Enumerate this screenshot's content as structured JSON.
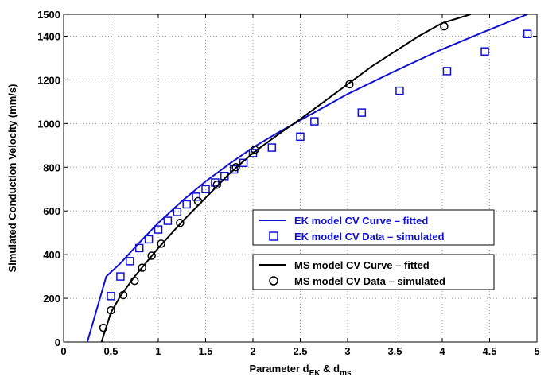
{
  "chart_data": {
    "type": "line",
    "title": "",
    "xlabel": {
      "main": "Parameter d",
      "sub1": "EK",
      "mid": " & d",
      "sub2": "ms"
    },
    "ylabel": "Simulated Conduction Velocity (mm/s)",
    "xlim": [
      0,
      5
    ],
    "ylim": [
      0,
      1500
    ],
    "xticks": [
      0,
      0.5,
      1,
      1.5,
      2,
      2.5,
      3,
      3.5,
      4,
      4.5,
      5
    ],
    "xtick_labels": [
      "0",
      "0.5",
      "1",
      "1.5",
      "2",
      "2.5",
      "3",
      "3.5",
      "4",
      "4.5",
      "5"
    ],
    "yticks": [
      0,
      200,
      400,
      600,
      800,
      1000,
      1200,
      1400,
      1500
    ],
    "ytick_labels": [
      "0",
      "200",
      "400",
      "600",
      "800",
      "1000",
      "1200",
      "1400",
      "1500"
    ],
    "grid": true,
    "legend_placement": "lower-right",
    "colors": {
      "ek": "#1010d0",
      "ms": "#000000"
    },
    "series": [
      {
        "name": "EK model CV Curve – fitted",
        "kind": "line",
        "color": "#1010d0",
        "x": [
          0.25,
          0.35,
          0.45,
          0.6,
          0.8,
          1.0,
          1.25,
          1.5,
          1.75,
          2.0,
          2.25,
          2.5,
          2.75,
          3.0,
          3.5,
          4.0,
          4.5,
          4.9
        ],
        "y": [
          0,
          150,
          300,
          360,
          455,
          545,
          645,
          735,
          815,
          890,
          955,
          1015,
          1075,
          1135,
          1240,
          1340,
          1430,
          1500
        ]
      },
      {
        "name": "EK model CV Data – simulated",
        "kind": "square",
        "color": "#1010d0",
        "x": [
          0.5,
          0.6,
          0.7,
          0.8,
          0.9,
          1.0,
          1.1,
          1.2,
          1.3,
          1.4,
          1.5,
          1.6,
          1.7,
          1.8,
          1.9,
          2.0,
          2.2,
          2.5,
          2.65,
          3.15,
          3.55,
          4.05,
          4.45,
          4.9
        ],
        "y": [
          210,
          300,
          370,
          430,
          470,
          515,
          555,
          595,
          630,
          665,
          700,
          730,
          760,
          790,
          820,
          865,
          890,
          940,
          1010,
          1050,
          1150,
          1240,
          1330,
          1410
        ]
      },
      {
        "name": "MS model CV Curve – fitted",
        "kind": "line",
        "color": "#000000",
        "x": [
          0.4,
          0.5,
          0.6,
          0.75,
          1.0,
          1.25,
          1.5,
          1.75,
          2.0,
          2.25,
          2.5,
          2.75,
          3.0,
          3.25,
          3.5,
          3.75,
          4.0,
          4.3
        ],
        "y": [
          0,
          135,
          210,
          300,
          430,
          550,
          660,
          770,
          865,
          945,
          1020,
          1100,
          1180,
          1260,
          1330,
          1400,
          1460,
          1500
        ]
      },
      {
        "name": "MS model CV Data – simulated",
        "kind": "circle",
        "color": "#000000",
        "x": [
          0.42,
          0.5,
          0.63,
          0.75,
          0.83,
          0.93,
          1.03,
          1.23,
          1.42,
          1.62,
          1.82,
          2.02,
          3.02,
          4.02
        ],
        "y": [
          65,
          145,
          215,
          280,
          340,
          395,
          450,
          545,
          645,
          720,
          800,
          880,
          1180,
          1445
        ]
      }
    ]
  }
}
